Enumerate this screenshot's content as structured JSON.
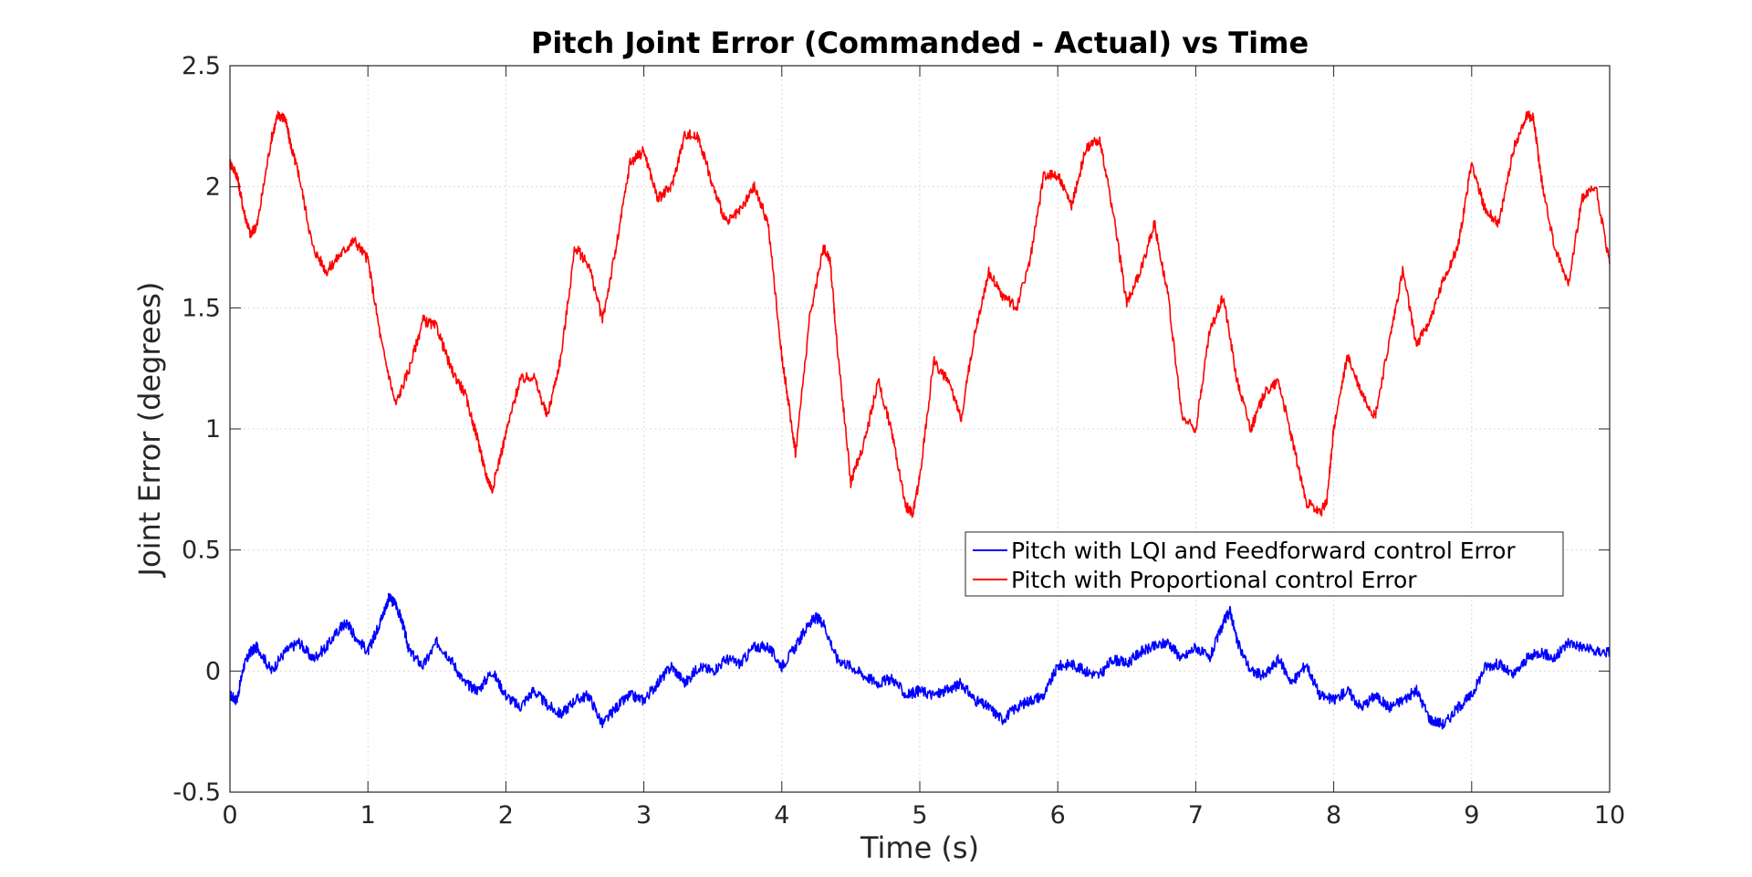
{
  "chart_data": {
    "type": "line",
    "title": "Pitch Joint Error (Commanded - Actual) vs Time",
    "xlabel": "Time (s)",
    "ylabel": "Joint Error (degrees)",
    "xlim": [
      0,
      10
    ],
    "ylim": [
      -0.5,
      2.5
    ],
    "xticks": [
      0,
      1,
      2,
      3,
      4,
      5,
      6,
      7,
      8,
      9,
      10
    ],
    "xtick_labels": [
      "0",
      "1",
      "2",
      "3",
      "4",
      "5",
      "6",
      "7",
      "8",
      "9",
      "10"
    ],
    "yticks": [
      -0.5,
      0,
      0.5,
      1,
      1.5,
      2,
      2.5
    ],
    "ytick_labels": [
      "-0.5",
      "0",
      "0.5",
      "1",
      "1.5",
      "2",
      "2.5"
    ],
    "grid": true,
    "legend_position": "middle-right",
    "series": [
      {
        "name": "Pitch with LQI and Feedforward control Error",
        "color": "#0000ff",
        "x": [
          0,
          0.05,
          0.1,
          0.15,
          0.2,
          0.3,
          0.4,
          0.5,
          0.6,
          0.7,
          0.8,
          0.85,
          0.9,
          1.0,
          1.05,
          1.1,
          1.15,
          1.2,
          1.25,
          1.3,
          1.4,
          1.5,
          1.6,
          1.7,
          1.8,
          1.9,
          2.0,
          2.1,
          2.2,
          2.3,
          2.4,
          2.5,
          2.6,
          2.7,
          2.8,
          2.9,
          3.0,
          3.1,
          3.2,
          3.3,
          3.4,
          3.5,
          3.6,
          3.7,
          3.8,
          3.9,
          4.0,
          4.1,
          4.2,
          4.25,
          4.3,
          4.4,
          4.5,
          4.6,
          4.7,
          4.8,
          4.9,
          5.0,
          5.1,
          5.2,
          5.3,
          5.4,
          5.5,
          5.6,
          5.7,
          5.8,
          5.9,
          6.0,
          6.1,
          6.2,
          6.3,
          6.4,
          6.5,
          6.6,
          6.7,
          6.8,
          6.9,
          7.0,
          7.1,
          7.2,
          7.25,
          7.3,
          7.4,
          7.5,
          7.6,
          7.7,
          7.8,
          7.9,
          8.0,
          8.1,
          8.2,
          8.3,
          8.4,
          8.5,
          8.6,
          8.7,
          8.8,
          8.9,
          9.0,
          9.1,
          9.2,
          9.3,
          9.4,
          9.5,
          9.6,
          9.7,
          9.8,
          9.9,
          10.0
        ],
        "values": [
          -0.1,
          -0.12,
          0.02,
          0.08,
          0.1,
          0.0,
          0.08,
          0.12,
          0.05,
          0.1,
          0.18,
          0.2,
          0.15,
          0.08,
          0.15,
          0.22,
          0.3,
          0.28,
          0.2,
          0.08,
          0.02,
          0.12,
          0.05,
          -0.05,
          -0.08,
          0.0,
          -0.1,
          -0.15,
          -0.08,
          -0.14,
          -0.18,
          -0.12,
          -0.1,
          -0.22,
          -0.15,
          -0.1,
          -0.12,
          -0.05,
          0.02,
          -0.05,
          0.02,
          0.0,
          0.05,
          0.03,
          0.1,
          0.1,
          0.02,
          0.1,
          0.2,
          0.22,
          0.2,
          0.05,
          0.02,
          -0.02,
          -0.05,
          -0.03,
          -0.1,
          -0.08,
          -0.1,
          -0.08,
          -0.05,
          -0.12,
          -0.15,
          -0.2,
          -0.15,
          -0.12,
          -0.1,
          0.02,
          0.03,
          0.0,
          -0.02,
          0.05,
          0.03,
          0.08,
          0.1,
          0.12,
          0.05,
          0.1,
          0.05,
          0.2,
          0.25,
          0.12,
          0.0,
          -0.02,
          0.05,
          -0.05,
          0.03,
          -0.1,
          -0.12,
          -0.08,
          -0.15,
          -0.1,
          -0.15,
          -0.12,
          -0.08,
          -0.2,
          -0.22,
          -0.15,
          -0.1,
          0.02,
          0.03,
          -0.02,
          0.05,
          0.08,
          0.05,
          0.12,
          0.1,
          0.08,
          0.08
        ]
      },
      {
        "name": "Pitch with Proportional control Error",
        "color": "#ff0000",
        "x": [
          0,
          0.05,
          0.1,
          0.15,
          0.2,
          0.3,
          0.35,
          0.4,
          0.45,
          0.5,
          0.6,
          0.7,
          0.8,
          0.9,
          1.0,
          1.1,
          1.2,
          1.3,
          1.4,
          1.5,
          1.6,
          1.7,
          1.8,
          1.85,
          1.9,
          2.0,
          2.1,
          2.2,
          2.3,
          2.4,
          2.5,
          2.6,
          2.7,
          2.8,
          2.9,
          3.0,
          3.1,
          3.2,
          3.3,
          3.4,
          3.5,
          3.6,
          3.7,
          3.8,
          3.9,
          4.0,
          4.05,
          4.1,
          4.2,
          4.3,
          4.35,
          4.4,
          4.5,
          4.6,
          4.7,
          4.8,
          4.9,
          4.95,
          5.0,
          5.1,
          5.2,
          5.3,
          5.4,
          5.5,
          5.6,
          5.7,
          5.8,
          5.9,
          6.0,
          6.1,
          6.2,
          6.3,
          6.4,
          6.5,
          6.6,
          6.7,
          6.8,
          6.9,
          7.0,
          7.1,
          7.2,
          7.3,
          7.4,
          7.5,
          7.6,
          7.7,
          7.8,
          7.9,
          7.95,
          8.0,
          8.1,
          8.2,
          8.3,
          8.4,
          8.5,
          8.6,
          8.7,
          8.8,
          8.9,
          9.0,
          9.1,
          9.2,
          9.3,
          9.4,
          9.45,
          9.5,
          9.6,
          9.7,
          9.8,
          9.9,
          10.0
        ],
        "values": [
          2.1,
          2.05,
          1.9,
          1.8,
          1.85,
          2.2,
          2.3,
          2.28,
          2.15,
          2.05,
          1.75,
          1.65,
          1.72,
          1.78,
          1.7,
          1.35,
          1.1,
          1.25,
          1.45,
          1.42,
          1.25,
          1.15,
          0.95,
          0.82,
          0.75,
          0.98,
          1.2,
          1.22,
          1.05,
          1.3,
          1.75,
          1.68,
          1.45,
          1.75,
          2.1,
          2.15,
          1.95,
          2.0,
          2.22,
          2.2,
          2.0,
          1.85,
          1.9,
          2.0,
          1.85,
          1.3,
          1.1,
          0.9,
          1.45,
          1.75,
          1.7,
          1.35,
          0.78,
          0.95,
          1.2,
          0.98,
          0.68,
          0.65,
          0.8,
          1.28,
          1.2,
          1.05,
          1.4,
          1.65,
          1.55,
          1.5,
          1.7,
          2.05,
          2.05,
          1.92,
          2.15,
          2.2,
          1.9,
          1.52,
          1.65,
          1.85,
          1.55,
          1.05,
          1.0,
          1.4,
          1.55,
          1.2,
          1.0,
          1.15,
          1.2,
          0.95,
          0.7,
          0.65,
          0.7,
          1.0,
          1.3,
          1.15,
          1.05,
          1.35,
          1.65,
          1.35,
          1.45,
          1.62,
          1.75,
          2.1,
          1.9,
          1.85,
          2.15,
          2.3,
          2.28,
          2.05,
          1.75,
          1.6,
          1.95,
          2.0,
          1.68
        ]
      }
    ]
  }
}
